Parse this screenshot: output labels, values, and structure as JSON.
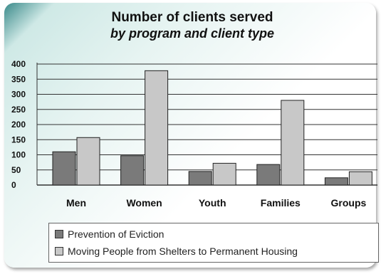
{
  "chart_data": {
    "type": "bar",
    "title": "Number of clients served",
    "subtitle": "by program and client type",
    "categories": [
      "Men",
      "Women",
      "Youth",
      "Families",
      "Groups"
    ],
    "series": [
      {
        "name": "Prevention of Eviction",
        "values": [
          110,
          97,
          45,
          68,
          24
        ],
        "color": "#7a7a7a"
      },
      {
        "name": "Moving People from Shelters to Permanent Housing",
        "values": [
          157,
          378,
          72,
          280,
          44
        ],
        "color": "#c8c8c8"
      }
    ],
    "yticks": [
      "0",
      "50",
      "100",
      "150",
      "200",
      "250",
      "300",
      "350",
      "400"
    ],
    "ylim": [
      0,
      400
    ],
    "grid": true,
    "legend_position": "bottom"
  }
}
